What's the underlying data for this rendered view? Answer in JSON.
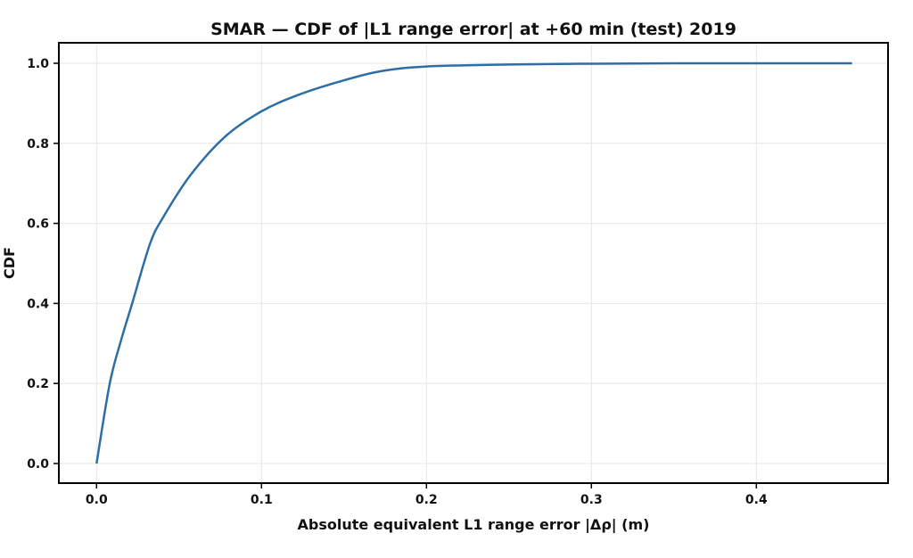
{
  "chart_data": {
    "type": "line",
    "title": "SMAR — CDF of |L1 range error| at +60 min (test) 2019",
    "xlabel": "Absolute equivalent L1 range error |Δρ| (m)",
    "ylabel": "CDF",
    "xlim": [
      -0.023,
      0.479
    ],
    "ylim": [
      -0.05,
      1.05
    ],
    "xticks": [
      0.0,
      0.1,
      0.2,
      0.3,
      0.4
    ],
    "xtick_labels": [
      "0.0",
      "0.1",
      "0.2",
      "0.3",
      "0.4"
    ],
    "yticks": [
      0.0,
      0.2,
      0.4,
      0.6,
      0.8,
      1.0
    ],
    "ytick_labels": [
      "0.0",
      "0.2",
      "0.4",
      "0.6",
      "0.8",
      "1.0"
    ],
    "grid": true,
    "series": [
      {
        "name": "CDF",
        "color": "#2e6ea6",
        "x": [
          0.0,
          0.008,
          0.015,
          0.0216,
          0.0324,
          0.0405,
          0.0568,
          0.078,
          0.1,
          0.1216,
          0.147,
          0.172,
          0.2,
          0.25,
          0.3,
          0.35,
          0.4,
          0.458
        ],
        "y": [
          0.0,
          0.2,
          0.31,
          0.4,
          0.549,
          0.616,
          0.72,
          0.817,
          0.88,
          0.92,
          0.954,
          0.98,
          0.992,
          0.997,
          0.999,
          1.0,
          1.0,
          1.0
        ]
      }
    ]
  }
}
